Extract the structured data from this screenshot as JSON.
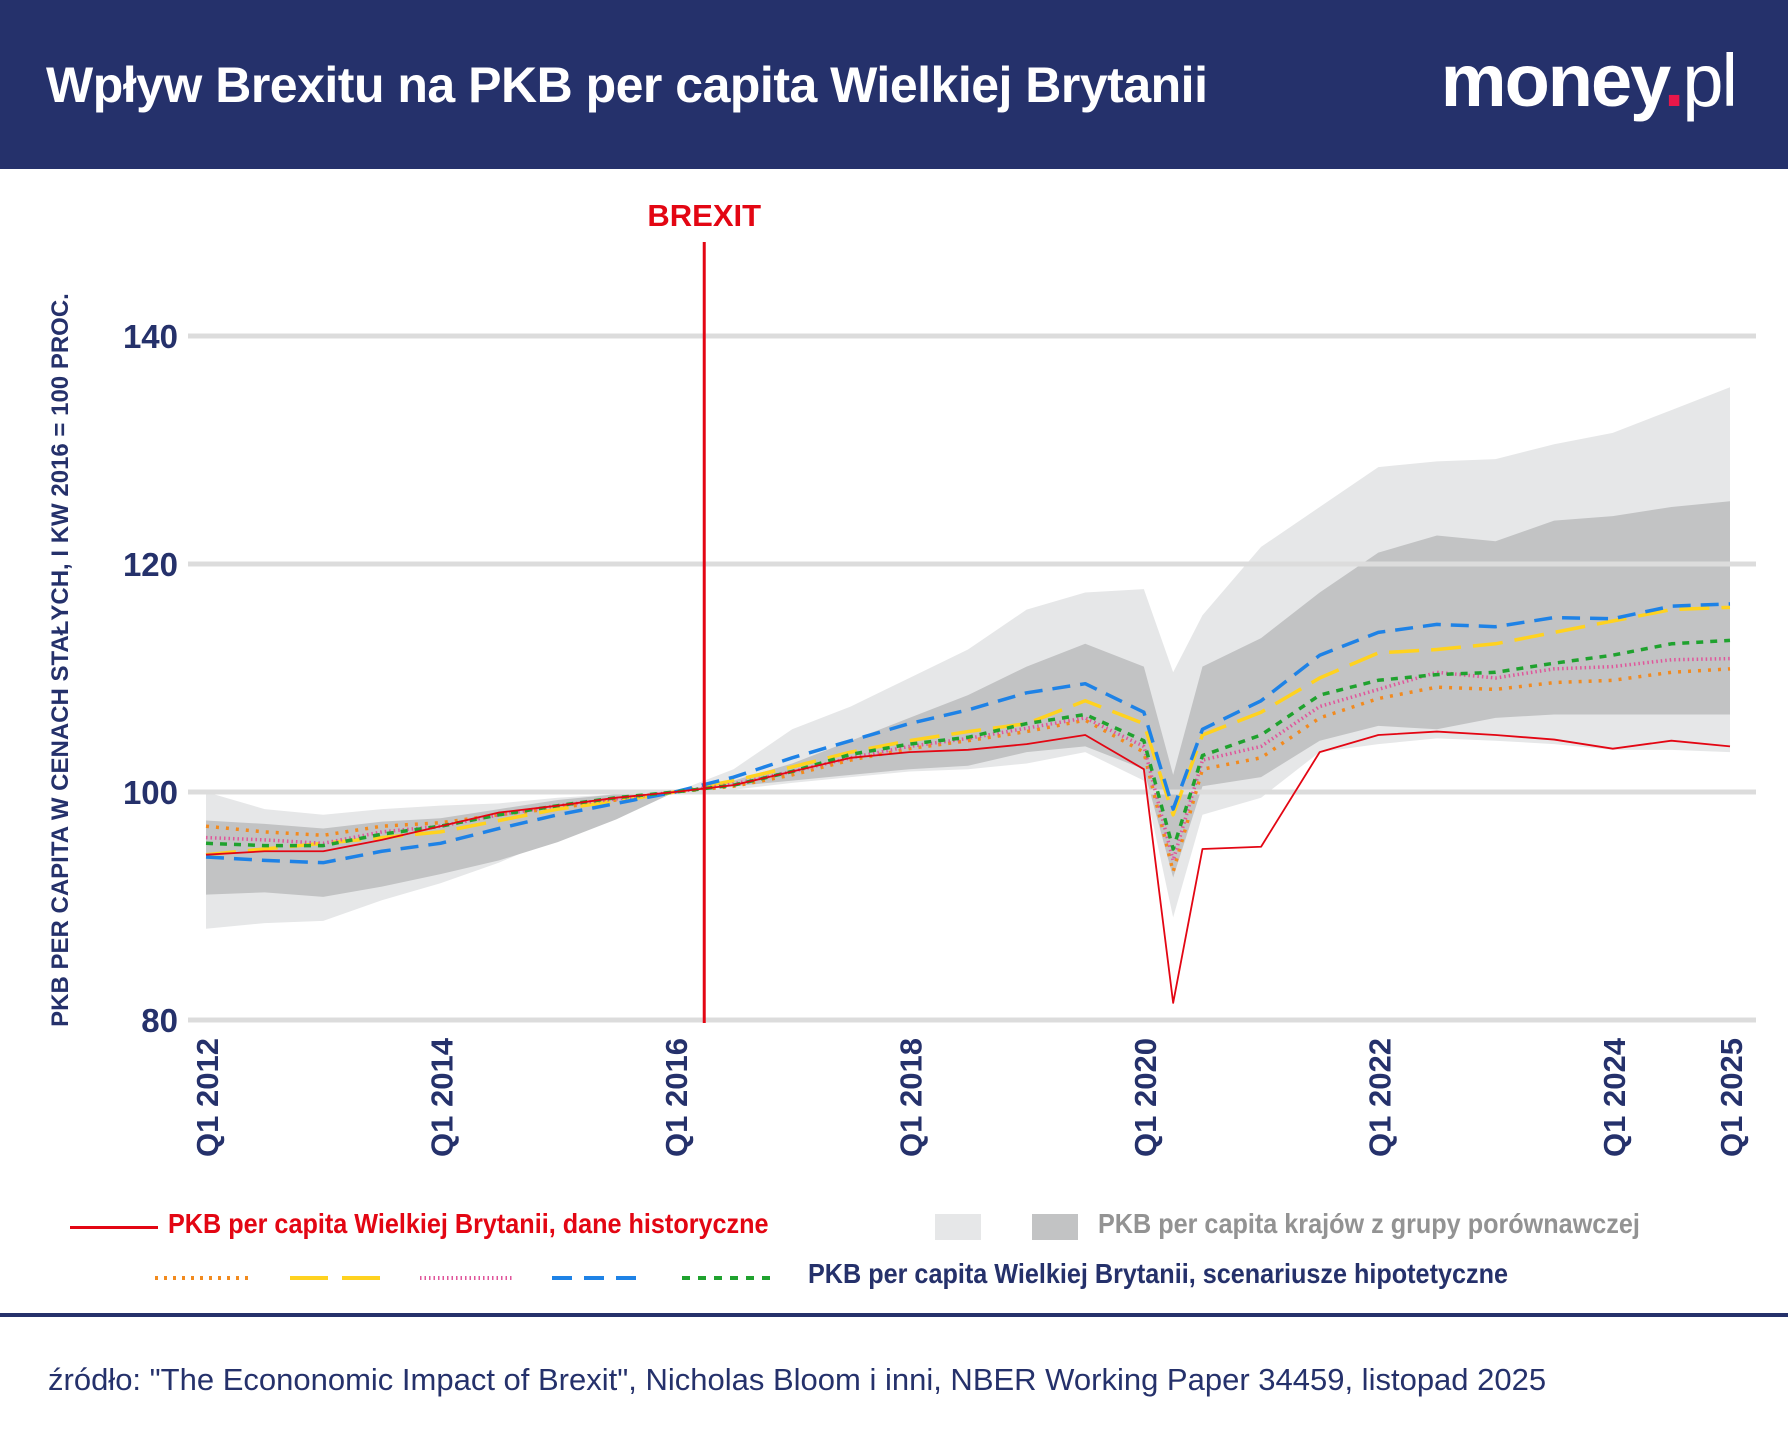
{
  "header": {
    "title": "Wpływ Brexitu na PKB per capita Wielkiej Brytanii",
    "logo": {
      "main": "money",
      "dot": ".",
      "suffix": "pl"
    },
    "background": "#25316b"
  },
  "chart_data": {
    "type": "line",
    "title": "Wpływ Brexitu na PKB per capita Wielkiej Brytanii",
    "ylabel": "PKB PER CAPITA W CENACH STAŁYCH, I KW 2016 = 100 PROC.",
    "xlabel": "",
    "ylim": [
      80,
      140
    ],
    "yticks": [
      80,
      100,
      120,
      140
    ],
    "xticks": [
      {
        "x": "2012Q1",
        "label": "Q1 2012"
      },
      {
        "x": "2014Q1",
        "label": "Q1 2014"
      },
      {
        "x": "2016Q1",
        "label": "Q1 2016"
      },
      {
        "x": "2018Q1",
        "label": "Q1 2018"
      },
      {
        "x": "2020Q1",
        "label": "Q1 2020"
      },
      {
        "x": "2022Q1",
        "label": "Q1 2022"
      },
      {
        "x": "2024Q1",
        "label": "Q1 2024"
      },
      {
        "x": "2025Q1",
        "label": "Q1 2025"
      }
    ],
    "grid": "horizontal",
    "annotation": {
      "label": "BREXIT",
      "x": "2016Q2",
      "color": "#e30613"
    },
    "x": [
      "2012Q1",
      "2012Q3",
      "2013Q1",
      "2013Q3",
      "2014Q1",
      "2014Q3",
      "2015Q1",
      "2015Q3",
      "2016Q1",
      "2016Q3",
      "2017Q1",
      "2017Q3",
      "2018Q1",
      "2018Q3",
      "2019Q1",
      "2019Q3",
      "2020Q1",
      "2020Q2",
      "2020Q3",
      "2021Q1",
      "2021Q3",
      "2022Q1",
      "2022Q3",
      "2023Q1",
      "2023Q3",
      "2024Q1",
      "2024Q3",
      "2025Q1"
    ],
    "bands": [
      {
        "name": "PKB per capita krajów z grupy porównawczej (szeroki zakres)",
        "color": "#e6e7e8",
        "upper": [
          100,
          98.5,
          98,
          98.5,
          98.8,
          99,
          99.5,
          99.8,
          100,
          102,
          105.5,
          107.5,
          110,
          112.5,
          116,
          117.5,
          117.8,
          110.5,
          115.5,
          121.5,
          125,
          128.5,
          129,
          129.2,
          130.5,
          131.5,
          133.5,
          135.5
        ],
        "lower": [
          88,
          88.5,
          88.7,
          90.5,
          92,
          93.8,
          96,
          97.8,
          100,
          100.2,
          100.8,
          101.3,
          101.8,
          102,
          102.5,
          103.5,
          101,
          89,
          98,
          99.5,
          103.5,
          104.2,
          104.7,
          104.5,
          104.2,
          103.7,
          103.7,
          103.5
        ]
      },
      {
        "name": "PKB per capita krajów z grupy porównawczej (wąski zakres)",
        "color": "#c2c3c4",
        "upper": [
          97.5,
          97.2,
          96.8,
          97.4,
          97.7,
          98.5,
          99.3,
          99.8,
          100,
          101,
          102.5,
          104.5,
          106.5,
          108.5,
          111,
          113,
          111,
          101.5,
          111,
          113.5,
          117.5,
          121,
          122.5,
          122,
          123.8,
          124.2,
          125,
          125.5
        ],
        "lower": [
          91,
          91.2,
          90.8,
          91.7,
          92.8,
          94,
          95.6,
          97.6,
          100,
          100.5,
          101,
          101.5,
          102,
          102.3,
          103.5,
          104,
          102,
          92.5,
          100.5,
          101.3,
          104.5,
          105.8,
          105.5,
          106.5,
          106.8,
          106.8,
          106.8,
          106.8
        ]
      }
    ],
    "series": [
      {
        "name": "scenariusz 1",
        "color": "#f28a1e",
        "dash": "dotted",
        "values": [
          97,
          96.5,
          96.2,
          97,
          97.3,
          98,
          98.6,
          99.3,
          100,
          100.5,
          101.5,
          102.8,
          103.8,
          104.5,
          105.3,
          106.3,
          103.5,
          93,
          102,
          103,
          106.5,
          108.2,
          109.2,
          109,
          109.6,
          109.8,
          110.5,
          110.8
        ]
      },
      {
        "name": "scenariusz 2",
        "color": "#ffd21f",
        "dash": "long-dash",
        "values": [
          94.5,
          95,
          95.5,
          96,
          96.5,
          97.5,
          98.5,
          99.2,
          100,
          101,
          102.2,
          103.5,
          104.5,
          105.3,
          106,
          108,
          106,
          98,
          105,
          107,
          110,
          112.2,
          112.5,
          113,
          114,
          115,
          116,
          116.2
        ]
      },
      {
        "name": "scenariusz 3",
        "color": "#e0569b",
        "dash": "fine-dotted",
        "values": [
          96,
          95.8,
          95.5,
          96.5,
          97,
          98,
          98.8,
          99.4,
          100,
          100.7,
          101.8,
          103,
          104,
          104.7,
          105.6,
          106.5,
          104,
          94,
          102.8,
          104,
          107.5,
          109,
          110.5,
          110,
          110.8,
          111,
          111.6,
          111.7
        ]
      },
      {
        "name": "scenariusz 4",
        "color": "#1e82e6",
        "dash": "dashed",
        "values": [
          94.3,
          94,
          93.8,
          94.8,
          95.5,
          96.8,
          98,
          99,
          100,
          101.3,
          103,
          104.5,
          106,
          107.2,
          108.7,
          109.5,
          107,
          98.5,
          105.5,
          108,
          112,
          114,
          114.7,
          114.5,
          115.3,
          115.2,
          116.3,
          116.5
        ]
      },
      {
        "name": "scenariusz 5",
        "color": "#1fa22e",
        "dash": "short-dash",
        "values": [
          95.5,
          95.3,
          95.3,
          96.3,
          97,
          98,
          98.8,
          99.5,
          100,
          100.6,
          101.8,
          103.3,
          104.2,
          104.8,
          106,
          106.8,
          104.5,
          95,
          103.2,
          105,
          108.5,
          109.8,
          110.3,
          110.5,
          111.3,
          112,
          113,
          113.3
        ]
      },
      {
        "name": "PKB per capita Wielkiej Brytanii, dane historyczne",
        "color": "#e30613",
        "dash": "solid",
        "values": [
          94.5,
          94.8,
          94.8,
          95.8,
          97,
          98.2,
          98.8,
          99.5,
          100,
          100.6,
          101.8,
          103,
          103.5,
          103.7,
          104.2,
          105,
          102,
          81.5,
          95,
          95.2,
          103.5,
          105,
          105.3,
          105,
          104.6,
          103.8,
          104.5,
          104
        ]
      }
    ]
  },
  "legend": {
    "historical": {
      "label": "PKB per capita Wielkiej Brytanii, dane historyczne",
      "color": "#e30613"
    },
    "comparison": {
      "label": "PKB per capita krajów z grupy porównawczej",
      "color": "#939393"
    },
    "scenarios": {
      "label": "PKB per capita Wielkiej Brytanii, scenariusze hipotetyczne",
      "color": "#25316b"
    }
  },
  "source": "źródło: \"The Econonomic Impact of Brexit\", Nicholas Bloom i inni, NBER Working Paper 34459, listopad 2025"
}
